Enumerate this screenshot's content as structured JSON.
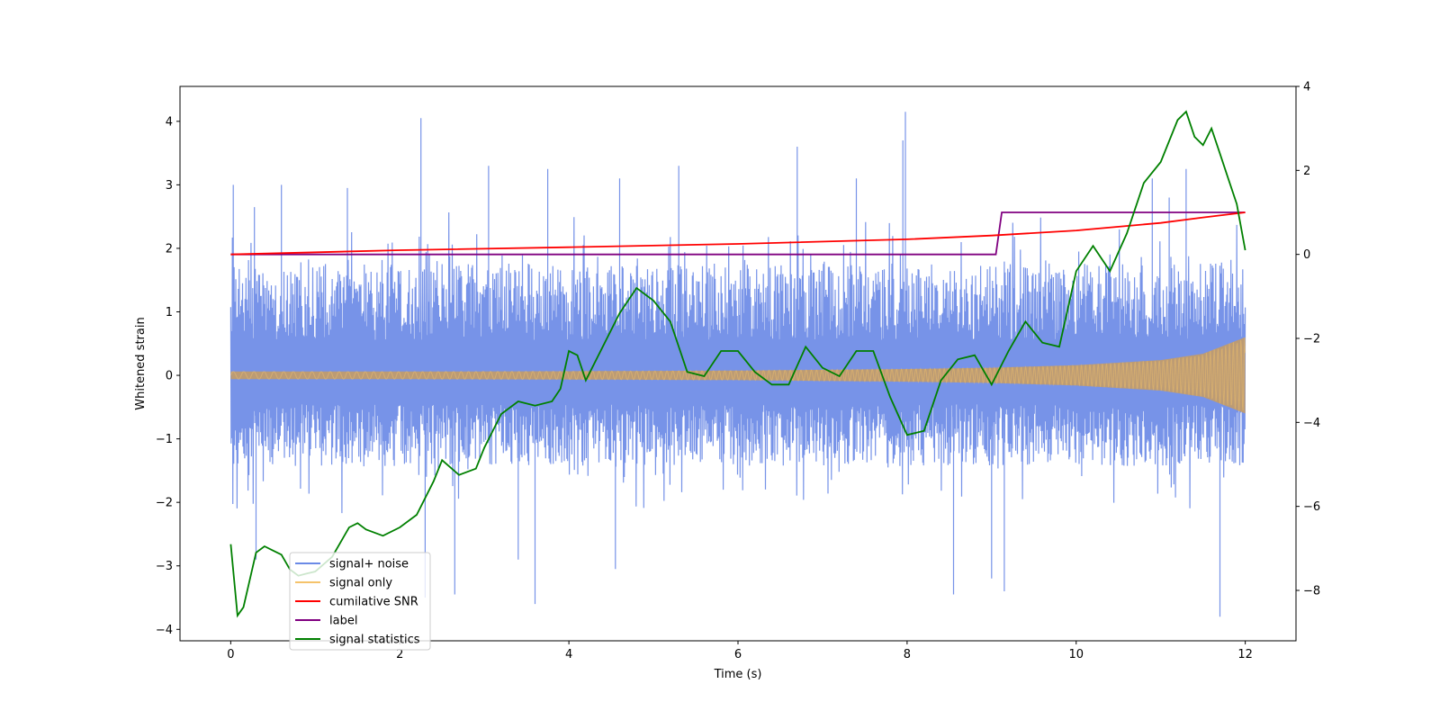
{
  "chart_data": {
    "type": "line",
    "title": "",
    "xlabel": "Time (s)",
    "ylabel": "Whitened strain",
    "y2label": "",
    "xlim": [
      -0.6,
      12.6
    ],
    "ylim": [
      -4.18,
      4.55
    ],
    "y2lim": [
      -9.2,
      4.0
    ],
    "xticks": [
      0,
      2,
      4,
      6,
      8,
      10,
      12
    ],
    "xtick_labels": [
      "0",
      "2",
      "4",
      "6",
      "8",
      "10",
      "12"
    ],
    "yticks": [
      -4,
      -3,
      -2,
      -1,
      0,
      1,
      2,
      3,
      4
    ],
    "ytick_labels": [
      "−4",
      "−3",
      "−2",
      "−1",
      "0",
      "1",
      "2",
      "3",
      "4"
    ],
    "y2ticks": [
      -8,
      -6,
      -4,
      -2,
      0,
      2,
      4
    ],
    "y2tick_labels": [
      "−8",
      "−6",
      "−4",
      "−2",
      "0",
      "2",
      "4"
    ],
    "grid": false,
    "legend_position": "lower-left",
    "legend": [
      "signal+ noise",
      "signal only",
      "cumilative SNR",
      "label",
      "signal statistics"
    ],
    "series": [
      {
        "name": "signal+ noise",
        "axis": "left",
        "color": "#6b8ae6",
        "kind": "noise-band",
        "x_range": [
          0,
          12
        ],
        "band_typical": [
          -1.3,
          1.6
        ],
        "spikes": [
          {
            "x": 0.03,
            "y": 3.0
          },
          {
            "x": 0.28,
            "y": 2.65
          },
          {
            "x": 0.3,
            "y": -2.9
          },
          {
            "x": 0.6,
            "y": 3.0
          },
          {
            "x": 1.38,
            "y": 2.95
          },
          {
            "x": 2.25,
            "y": 4.05
          },
          {
            "x": 2.3,
            "y": -3.5
          },
          {
            "x": 2.65,
            "y": -3.45
          },
          {
            "x": 3.05,
            "y": 3.3
          },
          {
            "x": 3.4,
            "y": -2.9
          },
          {
            "x": 3.6,
            "y": -3.6
          },
          {
            "x": 3.75,
            "y": 3.25
          },
          {
            "x": 4.6,
            "y": 3.1
          },
          {
            "x": 4.55,
            "y": -3.05
          },
          {
            "x": 5.3,
            "y": 3.3
          },
          {
            "x": 6.7,
            "y": 3.6
          },
          {
            "x": 7.4,
            "y": 3.1
          },
          {
            "x": 7.95,
            "y": 3.7
          },
          {
            "x": 7.98,
            "y": 4.15
          },
          {
            "x": 8.55,
            "y": -3.45
          },
          {
            "x": 9.0,
            "y": -3.2
          },
          {
            "x": 9.15,
            "y": -3.4
          },
          {
            "x": 10.9,
            "y": 3.1
          },
          {
            "x": 11.3,
            "y": 3.25
          },
          {
            "x": 11.7,
            "y": -3.8
          },
          {
            "x": 11.1,
            "y": 2.8
          }
        ]
      },
      {
        "name": "signal only",
        "axis": "left",
        "color": "#f5c36b",
        "kind": "chirp",
        "envelope": [
          [
            0,
            0.06
          ],
          [
            2,
            0.06
          ],
          [
            4,
            0.065
          ],
          [
            6,
            0.075
          ],
          [
            8,
            0.1
          ],
          [
            9,
            0.12
          ],
          [
            10,
            0.16
          ],
          [
            11,
            0.24
          ],
          [
            11.5,
            0.34
          ],
          [
            12,
            0.6
          ]
        ]
      },
      {
        "name": "cumilative SNR",
        "axis": "right",
        "color": "#ff0000",
        "x": [
          0,
          2,
          4,
          6,
          8,
          9,
          10,
          11,
          11.5,
          12
        ],
        "y": [
          0,
          0.1,
          0.17,
          0.25,
          0.36,
          0.45,
          0.57,
          0.75,
          0.88,
          1.0
        ]
      },
      {
        "name": "label",
        "axis": "right",
        "color": "#800080",
        "x": [
          0,
          9.05,
          9.12,
          12
        ],
        "y": [
          0,
          0,
          1,
          1
        ]
      },
      {
        "name": "signal statistics",
        "axis": "right",
        "color": "#008000",
        "x": [
          0,
          0.08,
          0.15,
          0.3,
          0.4,
          0.5,
          0.6,
          0.7,
          0.8,
          0.9,
          1.0,
          1.2,
          1.4,
          1.5,
          1.6,
          1.8,
          2.0,
          2.2,
          2.4,
          2.5,
          2.7,
          2.9,
          3.0,
          3.2,
          3.4,
          3.6,
          3.8,
          3.9,
          4.0,
          4.1,
          4.2,
          4.4,
          4.6,
          4.8,
          5.0,
          5.2,
          5.4,
          5.6,
          5.8,
          6.0,
          6.2,
          6.4,
          6.6,
          6.8,
          7.0,
          7.2,
          7.4,
          7.6,
          7.8,
          8.0,
          8.2,
          8.4,
          8.6,
          8.8,
          9.0,
          9.2,
          9.4,
          9.6,
          9.8,
          10.0,
          10.2,
          10.4,
          10.6,
          10.8,
          11.0,
          11.2,
          11.3,
          11.4,
          11.5,
          11.6,
          11.7,
          11.8,
          11.9,
          12.0
        ],
        "y": [
          -6.9,
          -8.6,
          -8.4,
          -7.1,
          -6.95,
          -7.05,
          -7.15,
          -7.5,
          -7.65,
          -7.6,
          -7.55,
          -7.2,
          -6.5,
          -6.4,
          -6.55,
          -6.7,
          -6.5,
          -6.2,
          -5.4,
          -4.9,
          -5.25,
          -5.1,
          -4.6,
          -3.8,
          -3.5,
          -3.6,
          -3.5,
          -3.2,
          -2.3,
          -2.4,
          -3.0,
          -2.2,
          -1.4,
          -0.8,
          -1.1,
          -1.6,
          -2.8,
          -2.9,
          -2.3,
          -2.3,
          -2.8,
          -3.1,
          -3.1,
          -2.2,
          -2.7,
          -2.9,
          -2.3,
          -2.3,
          -3.4,
          -4.3,
          -4.2,
          -3.0,
          -2.5,
          -2.4,
          -3.1,
          -2.3,
          -1.6,
          -2.1,
          -2.2,
          -0.4,
          0.2,
          -0.4,
          0.5,
          1.7,
          2.2,
          3.2,
          3.4,
          2.8,
          2.6,
          3.0,
          2.4,
          1.8,
          1.2,
          0.1
        ]
      }
    ]
  }
}
